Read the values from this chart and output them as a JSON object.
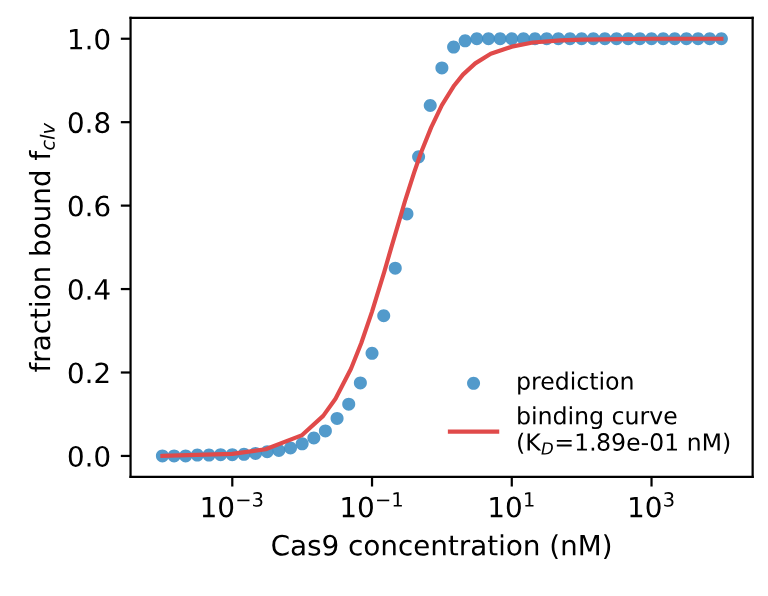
{
  "chart_data": {
    "type": "scatter",
    "xlabel": "Cas9 concentration (nM)",
    "ylabel": "fraction bound f$_{clv}$",
    "log": "x",
    "grid": false,
    "legend": "bottom right",
    "xlim": [
      3.5e-05,
      28000
    ],
    "ylim": [
      -0.05,
      1.05
    ],
    "xticks": [
      {
        "value": 0.001,
        "label": "10$^{−3}$"
      },
      {
        "value": 0.1,
        "label": "10$^{−1}$"
      },
      {
        "value": 10,
        "label": "10$^{1}$"
      },
      {
        "value": 1000,
        "label": "10$^{3}$"
      }
    ],
    "yticks": [
      {
        "value": 0,
        "label": "0.0"
      },
      {
        "value": 0.2,
        "label": "0.2"
      },
      {
        "value": 0.4,
        "label": "0.4"
      },
      {
        "value": 0.6,
        "label": "0.6"
      },
      {
        "value": 0.8,
        "label": "0.8"
      },
      {
        "value": 1,
        "label": "1.0"
      }
    ],
    "series": [
      {
        "name": "prediction",
        "marker": "circle",
        "color": "#3f8fc5",
        "x": [
          0.0001,
          0.000147,
          0.000215,
          0.000316,
          0.000464,
          0.000681,
          0.001,
          0.00147,
          0.00215,
          0.00316,
          0.00464,
          0.00681,
          0.01,
          0.0147,
          0.0215,
          0.0316,
          0.0464,
          0.0681,
          0.1,
          0.147,
          0.215,
          0.316,
          0.464,
          0.681,
          1,
          1.47,
          2.15,
          3.16,
          4.64,
          6.81,
          10,
          14.7,
          21.5,
          31.6,
          46.4,
          68.1,
          100,
          147,
          215,
          316,
          464,
          681,
          1000,
          1470,
          2150,
          3160,
          4640,
          6810,
          10000
        ],
        "values": [
          0.0,
          0.0,
          0.0,
          0.002,
          0.002,
          0.003,
          0.003,
          0.004,
          0.006,
          0.01,
          0.013,
          0.019,
          0.029,
          0.043,
          0.06,
          0.09,
          0.124,
          0.175,
          0.246,
          0.336,
          0.45,
          0.58,
          0.717,
          0.84,
          0.93,
          0.98,
          0.995,
          1.0,
          1.0,
          1.0,
          1.0,
          1.0,
          1.0,
          1.0,
          1.0,
          1.0,
          1.0,
          1.0,
          1.0,
          1.0,
          1.0,
          1.0,
          1.0,
          1.0,
          1.0,
          1.0,
          1.0,
          1.0,
          1.0
        ]
      },
      {
        "name": "binding curve\n(K$_{D}$=1.89e-01 nM)",
        "type": "line",
        "line_style": "solid",
        "color": "#e04a4a",
        "x": [
          0.0001,
          0.001,
          0.003,
          0.01,
          0.02,
          0.03,
          0.05,
          0.07,
          0.1,
          0.15,
          0.189,
          0.25,
          0.3,
          0.4,
          0.5,
          0.7,
          1,
          1.5,
          2,
          3,
          5,
          10,
          20,
          50,
          100,
          1000,
          10000
        ],
        "values": [
          0.0,
          0.005,
          0.016,
          0.05,
          0.096,
          0.137,
          0.209,
          0.27,
          0.346,
          0.442,
          0.5,
          0.569,
          0.614,
          0.679,
          0.726,
          0.787,
          0.841,
          0.888,
          0.914,
          0.941,
          0.964,
          0.981,
          0.991,
          0.996,
          0.998,
          1.0,
          1.0
        ]
      }
    ]
  }
}
